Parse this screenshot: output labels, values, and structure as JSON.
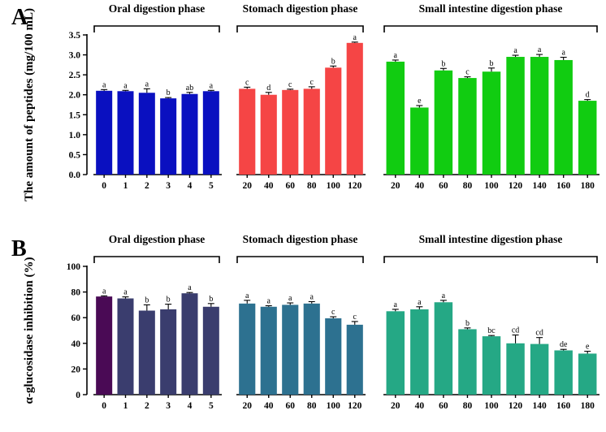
{
  "chart_data": [
    {
      "type": "bar",
      "panel_label": "A",
      "ylabel": "The amount of peptides (mg/100 mL)",
      "ylim": [
        0,
        3.5
      ],
      "yticks": [
        "0.0",
        "0.5",
        "1.0",
        "1.5",
        "2.0",
        "2.5",
        "3.0",
        "3.5"
      ],
      "bar_colors": [
        "#0a10c0",
        "#f54545",
        "#11cc11"
      ],
      "groups": [
        {
          "name": "Oral digestion phase",
          "categories": [
            "0",
            "1",
            "2",
            "3",
            "4",
            "5"
          ],
          "values": [
            2.1,
            2.09,
            2.05,
            1.91,
            2.02,
            2.09
          ],
          "errors": [
            0.03,
            0.02,
            0.1,
            0.02,
            0.04,
            0.02
          ],
          "letters": [
            "a",
            "a",
            "a",
            "b",
            "ab",
            "a"
          ]
        },
        {
          "name": "Stomach digestion phase",
          "categories": [
            "20",
            "40",
            "60",
            "80",
            "100",
            "120"
          ],
          "values": [
            2.15,
            2.0,
            2.12,
            2.15,
            2.68,
            3.3
          ],
          "errors": [
            0.04,
            0.06,
            0.02,
            0.05,
            0.04,
            0.02
          ],
          "letters": [
            "c",
            "d",
            "c",
            "c",
            "b",
            "a"
          ]
        },
        {
          "name": "Small intestine digestion phase",
          "categories": [
            "20",
            "40",
            "60",
            "80",
            "100",
            "120",
            "140",
            "160",
            "180"
          ],
          "values": [
            2.83,
            1.68,
            2.61,
            2.42,
            2.58,
            2.95,
            2.95,
            2.87,
            1.85
          ],
          "errors": [
            0.04,
            0.05,
            0.05,
            0.03,
            0.09,
            0.04,
            0.06,
            0.07,
            0.03
          ],
          "letters": [
            "a",
            "e",
            "b",
            "c",
            "b",
            "a",
            "a",
            "a",
            "d"
          ]
        }
      ]
    },
    {
      "type": "bar",
      "panel_label": "B",
      "ylabel": "α-glucosidase inhibition (%)",
      "ylim": [
        0,
        100
      ],
      "yticks": [
        "0",
        "20",
        "40",
        "60",
        "80",
        "100"
      ],
      "bar_colors": [
        "#3a3d6e",
        "#2d7190",
        "#25a885"
      ],
      "first_bar_color": "#4a0a55",
      "groups": [
        {
          "name": "Oral digestion phase",
          "categories": [
            "0",
            "1",
            "2",
            "3",
            "4",
            "5"
          ],
          "values": [
            76.5,
            75,
            65.5,
            66.5,
            79,
            68.5
          ],
          "errors": [
            0.5,
            1.2,
            4.5,
            4,
            0.6,
            2.5
          ],
          "letters": [
            "a",
            "a",
            "b",
            "b",
            "a",
            "b"
          ]
        },
        {
          "name": "Stomach digestion phase",
          "categories": [
            "20",
            "40",
            "60",
            "80",
            "100",
            "120"
          ],
          "values": [
            71,
            68.5,
            70,
            71,
            59.5,
            54.5
          ],
          "errors": [
            2.5,
            0.8,
            1.5,
            1.5,
            1.2,
            2.5
          ],
          "letters": [
            "a",
            "a",
            "a",
            "a",
            "c",
            "c"
          ]
        },
        {
          "name": "Small intestine digestion phase",
          "categories": [
            "20",
            "40",
            "60",
            "80",
            "100",
            "120",
            "140",
            "160",
            "180"
          ],
          "values": [
            65,
            66.5,
            72,
            51,
            45.5,
            40,
            39.5,
            34.5,
            32
          ],
          "errors": [
            1.5,
            2,
            1.5,
            1,
            0.6,
            6.5,
            5,
            0.8,
            1.8
          ],
          "letters": [
            "a",
            "a",
            "a",
            "b",
            "bc",
            "cd",
            "cd",
            "de",
            "e"
          ]
        }
      ]
    }
  ]
}
